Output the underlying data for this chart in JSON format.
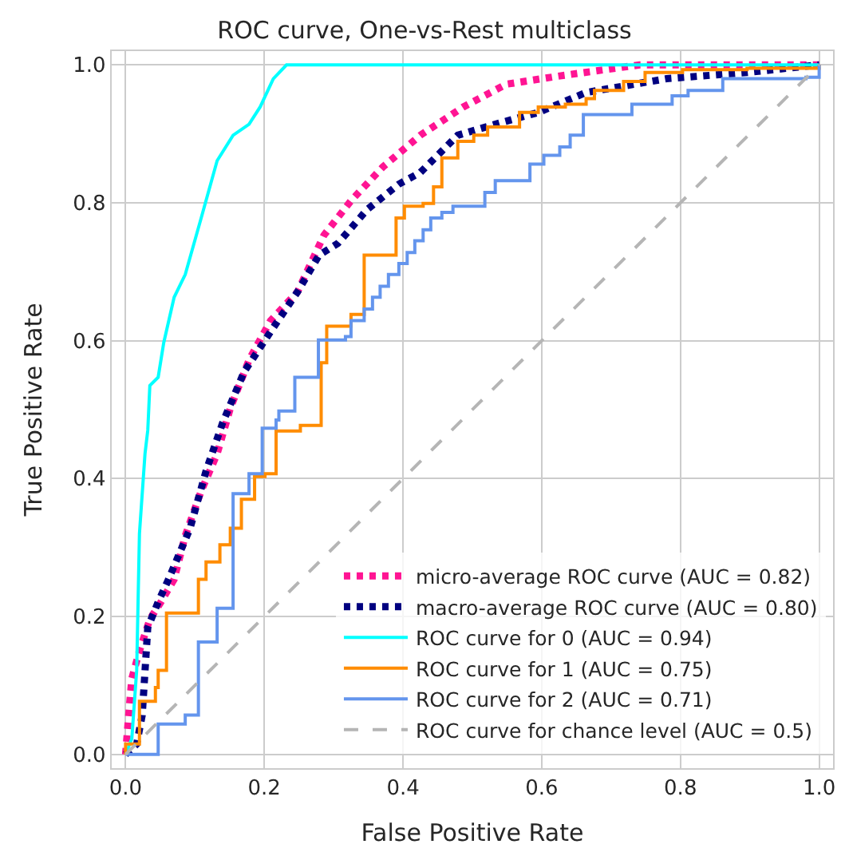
{
  "chart_data": {
    "type": "line",
    "title": "ROC curve, One-vs-Rest multiclass",
    "xlabel": "False Positive Rate",
    "ylabel": "True Positive Rate",
    "xlim": [
      -0.02,
      1.02
    ],
    "ylim": [
      -0.02,
      1.02
    ],
    "xticks": [
      {
        "value": 0,
        "label": "0.0"
      },
      {
        "value": 0.2,
        "label": "0.2"
      },
      {
        "value": 0.4,
        "label": "0.4"
      },
      {
        "value": 0.6,
        "label": "0.6"
      },
      {
        "value": 0.8,
        "label": "0.8"
      },
      {
        "value": 1,
        "label": "1.0"
      }
    ],
    "yticks": [
      {
        "value": 0,
        "label": "0.0"
      },
      {
        "value": 0.2,
        "label": "0.2"
      },
      {
        "value": 0.4,
        "label": "0.4"
      },
      {
        "value": 0.6,
        "label": "0.6"
      },
      {
        "value": 0.8,
        "label": "0.8"
      },
      {
        "value": 1,
        "label": "1.0"
      }
    ],
    "grid": true,
    "legend": "bottom right",
    "series": [
      {
        "name": "micro-average ROC curve (AUC = 0.82)",
        "color": "#ff1493",
        "line_style": "dotted",
        "x": [
          0,
          0.005,
          0.009,
          0.02,
          0.035,
          0.051,
          0.07,
          0.086,
          0.109,
          0.132,
          0.151,
          0.178,
          0.209,
          0.248,
          0.286,
          0.325,
          0.371,
          0.425,
          0.487,
          0.549,
          0.626,
          0.741,
          1
        ],
        "values": [
          0,
          0.064,
          0.11,
          0.15,
          0.196,
          0.221,
          0.254,
          0.317,
          0.382,
          0.436,
          0.502,
          0.572,
          0.629,
          0.671,
          0.753,
          0.803,
          0.852,
          0.898,
          0.939,
          0.972,
          0.984,
          1,
          1
        ]
      },
      {
        "name": "macro-average ROC curve (AUC = 0.80)",
        "color": "#000080",
        "line_style": "dotted",
        "x": [
          0,
          0.016,
          0.024,
          0.032,
          0.047,
          0.062,
          0.093,
          0.116,
          0.14,
          0.171,
          0.209,
          0.248,
          0.279,
          0.306,
          0.348,
          0.394,
          0.425,
          0.479,
          0.533,
          0.595,
          0.664,
          0.78,
          0.896,
          1
        ],
        "values": [
          0,
          0.015,
          0.057,
          0.184,
          0.221,
          0.254,
          0.328,
          0.411,
          0.481,
          0.555,
          0.613,
          0.671,
          0.724,
          0.741,
          0.79,
          0.827,
          0.844,
          0.898,
          0.914,
          0.931,
          0.96,
          0.98,
          0.989,
          1
        ]
      },
      {
        "name": "ROC curve for 0 (AUC = 0.94)",
        "color": "#00ffff",
        "line_style": "solid",
        "x": [
          0,
          0.009,
          0.016,
          0.02,
          0.028,
          0.032,
          0.035,
          0.047,
          0.055,
          0.07,
          0.086,
          0.109,
          0.132,
          0.155,
          0.178,
          0.194,
          0.213,
          0.232,
          1
        ],
        "values": [
          0,
          0.023,
          0.122,
          0.32,
          0.436,
          0.47,
          0.535,
          0.547,
          0.597,
          0.663,
          0.696,
          0.778,
          0.861,
          0.898,
          0.914,
          0.939,
          0.98,
          1,
          1
        ]
      },
      {
        "name": "ROC curve for 1 (AUC = 0.75)",
        "color": "#ff8c00",
        "type": "step",
        "line_style": "solid",
        "x": [
          0,
          0,
          0.009,
          0.02,
          0.043,
          0.047,
          0.059,
          0.09,
          0.105,
          0.116,
          0.136,
          0.151,
          0.167,
          0.186,
          0.201,
          0.217,
          0.252,
          0.282,
          0.282,
          0.29,
          0.325,
          0.344,
          0.387,
          0.39,
          0.402,
          0.429,
          0.444,
          0.456,
          0.479,
          0.502,
          0.522,
          0.549,
          0.568,
          0.595,
          0.634,
          0.664,
          0.676,
          0.718,
          0.749,
          0.803,
          0.896,
          1
        ],
        "values": [
          0,
          0.015,
          0.015,
          0.077,
          0.097,
          0.122,
          0.205,
          0.205,
          0.254,
          0.279,
          0.304,
          0.328,
          0.37,
          0.403,
          0.407,
          0.469,
          0.477,
          0.481,
          0.568,
          0.621,
          0.638,
          0.724,
          0.724,
          0.778,
          0.795,
          0.799,
          0.823,
          0.865,
          0.889,
          0.898,
          0.91,
          0.91,
          0.931,
          0.939,
          0.943,
          0.951,
          0.963,
          0.976,
          0.989,
          0.993,
          0.995,
          1
        ]
      },
      {
        "name": "ROC curve for 2 (AUC = 0.71)",
        "color": "#6495ed",
        "type": "step",
        "line_style": "solid",
        "x": [
          0,
          0.035,
          0.047,
          0.086,
          0.105,
          0.132,
          0.132,
          0.155,
          0.155,
          0.178,
          0.178,
          0.197,
          0.197,
          0.217,
          0.221,
          0.244,
          0.244,
          0.278,
          0.278,
          0.317,
          0.325,
          0.344,
          0.356,
          0.367,
          0.379,
          0.394,
          0.406,
          0.417,
          0.429,
          0.44,
          0.456,
          0.472,
          0.502,
          0.518,
          0.533,
          0.572,
          0.583,
          0.603,
          0.626,
          0.641,
          0.66,
          0.722,
          0.73,
          0.78,
          0.788,
          0.811,
          0.842,
          0.861,
          0.981,
          1
        ],
        "values": [
          0,
          0,
          0.044,
          0.057,
          0.163,
          0.163,
          0.212,
          0.287,
          0.378,
          0.382,
          0.407,
          0.436,
          0.473,
          0.485,
          0.498,
          0.502,
          0.547,
          0.564,
          0.601,
          0.606,
          0.629,
          0.646,
          0.663,
          0.679,
          0.696,
          0.712,
          0.728,
          0.745,
          0.761,
          0.778,
          0.786,
          0.795,
          0.795,
          0.815,
          0.832,
          0.832,
          0.856,
          0.869,
          0.881,
          0.898,
          0.928,
          0.928,
          0.943,
          0.943,
          0.955,
          0.963,
          0.963,
          0.98,
          0.982,
          1
        ]
      },
      {
        "name": "ROC curve for chance level (AUC = 0.5)",
        "color": "#b5b5b5",
        "line_style": "dashed",
        "x": [
          0,
          1
        ],
        "values": [
          0,
          1
        ]
      }
    ]
  }
}
